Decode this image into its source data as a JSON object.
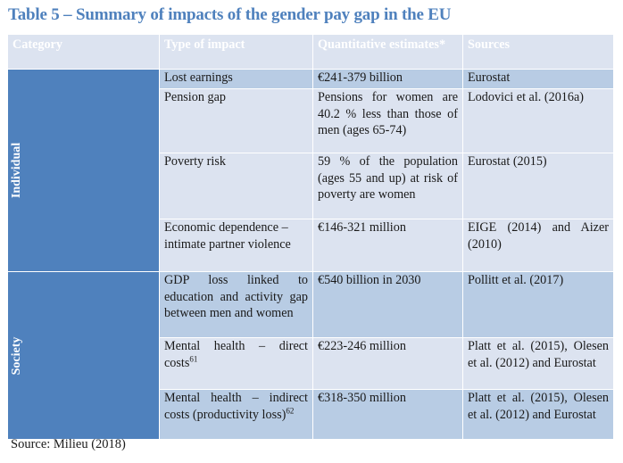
{
  "title": "Table 5 – Summary of impacts of the gender pay gap in the EU",
  "headers": [
    "Category",
    "Type of impact",
    "Quantitative estimates*",
    "Sources"
  ],
  "categories": {
    "individual": "Individual",
    "society": "Society"
  },
  "rows": [
    {
      "impact": "Lost earnings",
      "estimate": "€241-379 billion",
      "source": "Eurostat"
    },
    {
      "impact": "Pension gap",
      "estimate": "Pensions for women are 40.2 % less than those of men (ages 65-74)",
      "source": "Lodovici et al. (2016a)"
    },
    {
      "impact": "Poverty risk",
      "estimate": "59 % of the population (ages 55 and up) at risk of poverty are women",
      "source": "Eurostat (2015)"
    },
    {
      "impact": "Economic dependence – intimate partner violence",
      "estimate": "€146-321 million",
      "source": "EIGE (2014) and Aizer (2010)"
    },
    {
      "impact": "GDP loss linked to education and activity gap between men and women",
      "estimate": "€540 billion in 2030",
      "source": "Pollitt et al. (2017)"
    },
    {
      "impact": "Mental health – direct costs",
      "footnote": "61",
      "estimate": "€223-246 million",
      "source": "Platt et al. (2015), Olesen et al. (2012) and Eurostat"
    },
    {
      "impact": "Mental health – indirect costs (productivity loss)",
      "footnote": "62",
      "estimate": "€318-350 million",
      "source": "Platt et al. (2015), Olesen et al. (2012) and Eurostat"
    }
  ],
  "source_note": "Source: Milieu (2018)",
  "colors": {
    "title": "#4f81bd",
    "category_fill": "#4f81bd",
    "row_light": "#dce3f0",
    "row_dark": "#b8cce4"
  }
}
